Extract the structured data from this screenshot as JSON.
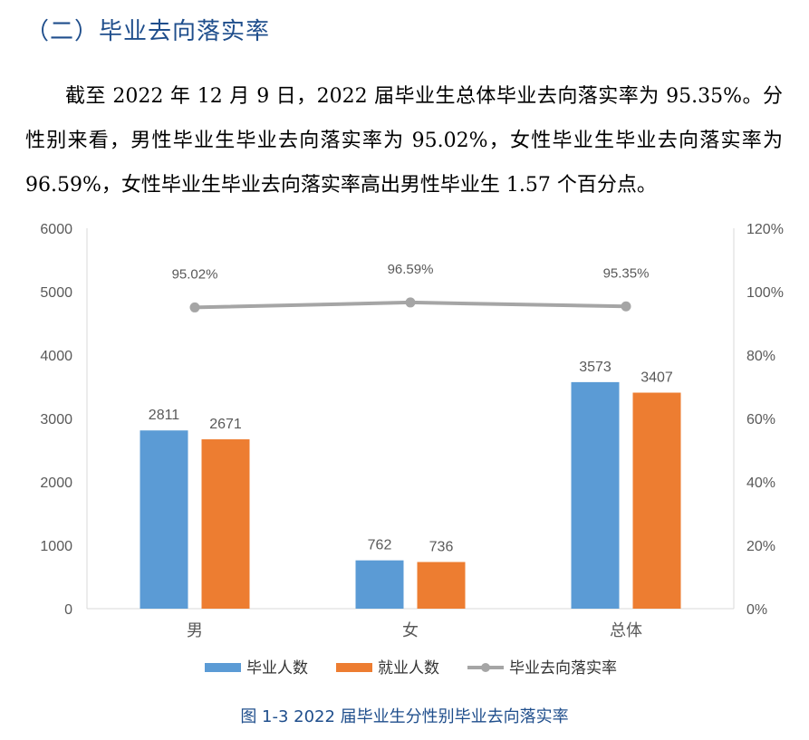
{
  "section_title": "（二）毕业去向落实率",
  "paragraph": "截至 2022 年 12 月 9 日，2022 届毕业生总体毕业去向落实率为 95.35%。分性别来看，男性毕业生毕业去向落实率为 95.02%，女性毕业生毕业去向落实率为 96.59%，女性毕业生毕业去向落实率高出男性毕业生 1.57 个百分点。",
  "caption": "图 1-3  2022 届毕业生分性别毕业去向落实率",
  "chart_data": {
    "type": "bar",
    "categories": [
      "男",
      "女",
      "总体"
    ],
    "series": [
      {
        "name": "毕业人数",
        "type": "bar",
        "axis": "left",
        "color": "#5b9bd5",
        "values": [
          2811,
          762,
          3573
        ]
      },
      {
        "name": "就业人数",
        "type": "bar",
        "axis": "left",
        "color": "#ed7d31",
        "values": [
          2671,
          736,
          3407
        ]
      },
      {
        "name": "毕业去向落实率",
        "type": "line",
        "axis": "right",
        "color": "#a5a5a5",
        "values": [
          95.02,
          96.59,
          95.35
        ],
        "labels": [
          "95.02%",
          "96.59%",
          "95.35%"
        ]
      }
    ],
    "ylim": [
      0,
      6000
    ],
    "yticks": [
      0,
      1000,
      2000,
      3000,
      4000,
      5000,
      6000
    ],
    "y2lim": [
      0,
      120
    ],
    "y2ticks": [
      "0%",
      "20%",
      "40%",
      "60%",
      "80%",
      "100%",
      "120%"
    ],
    "grid": false,
    "legend_position": "bottom"
  }
}
